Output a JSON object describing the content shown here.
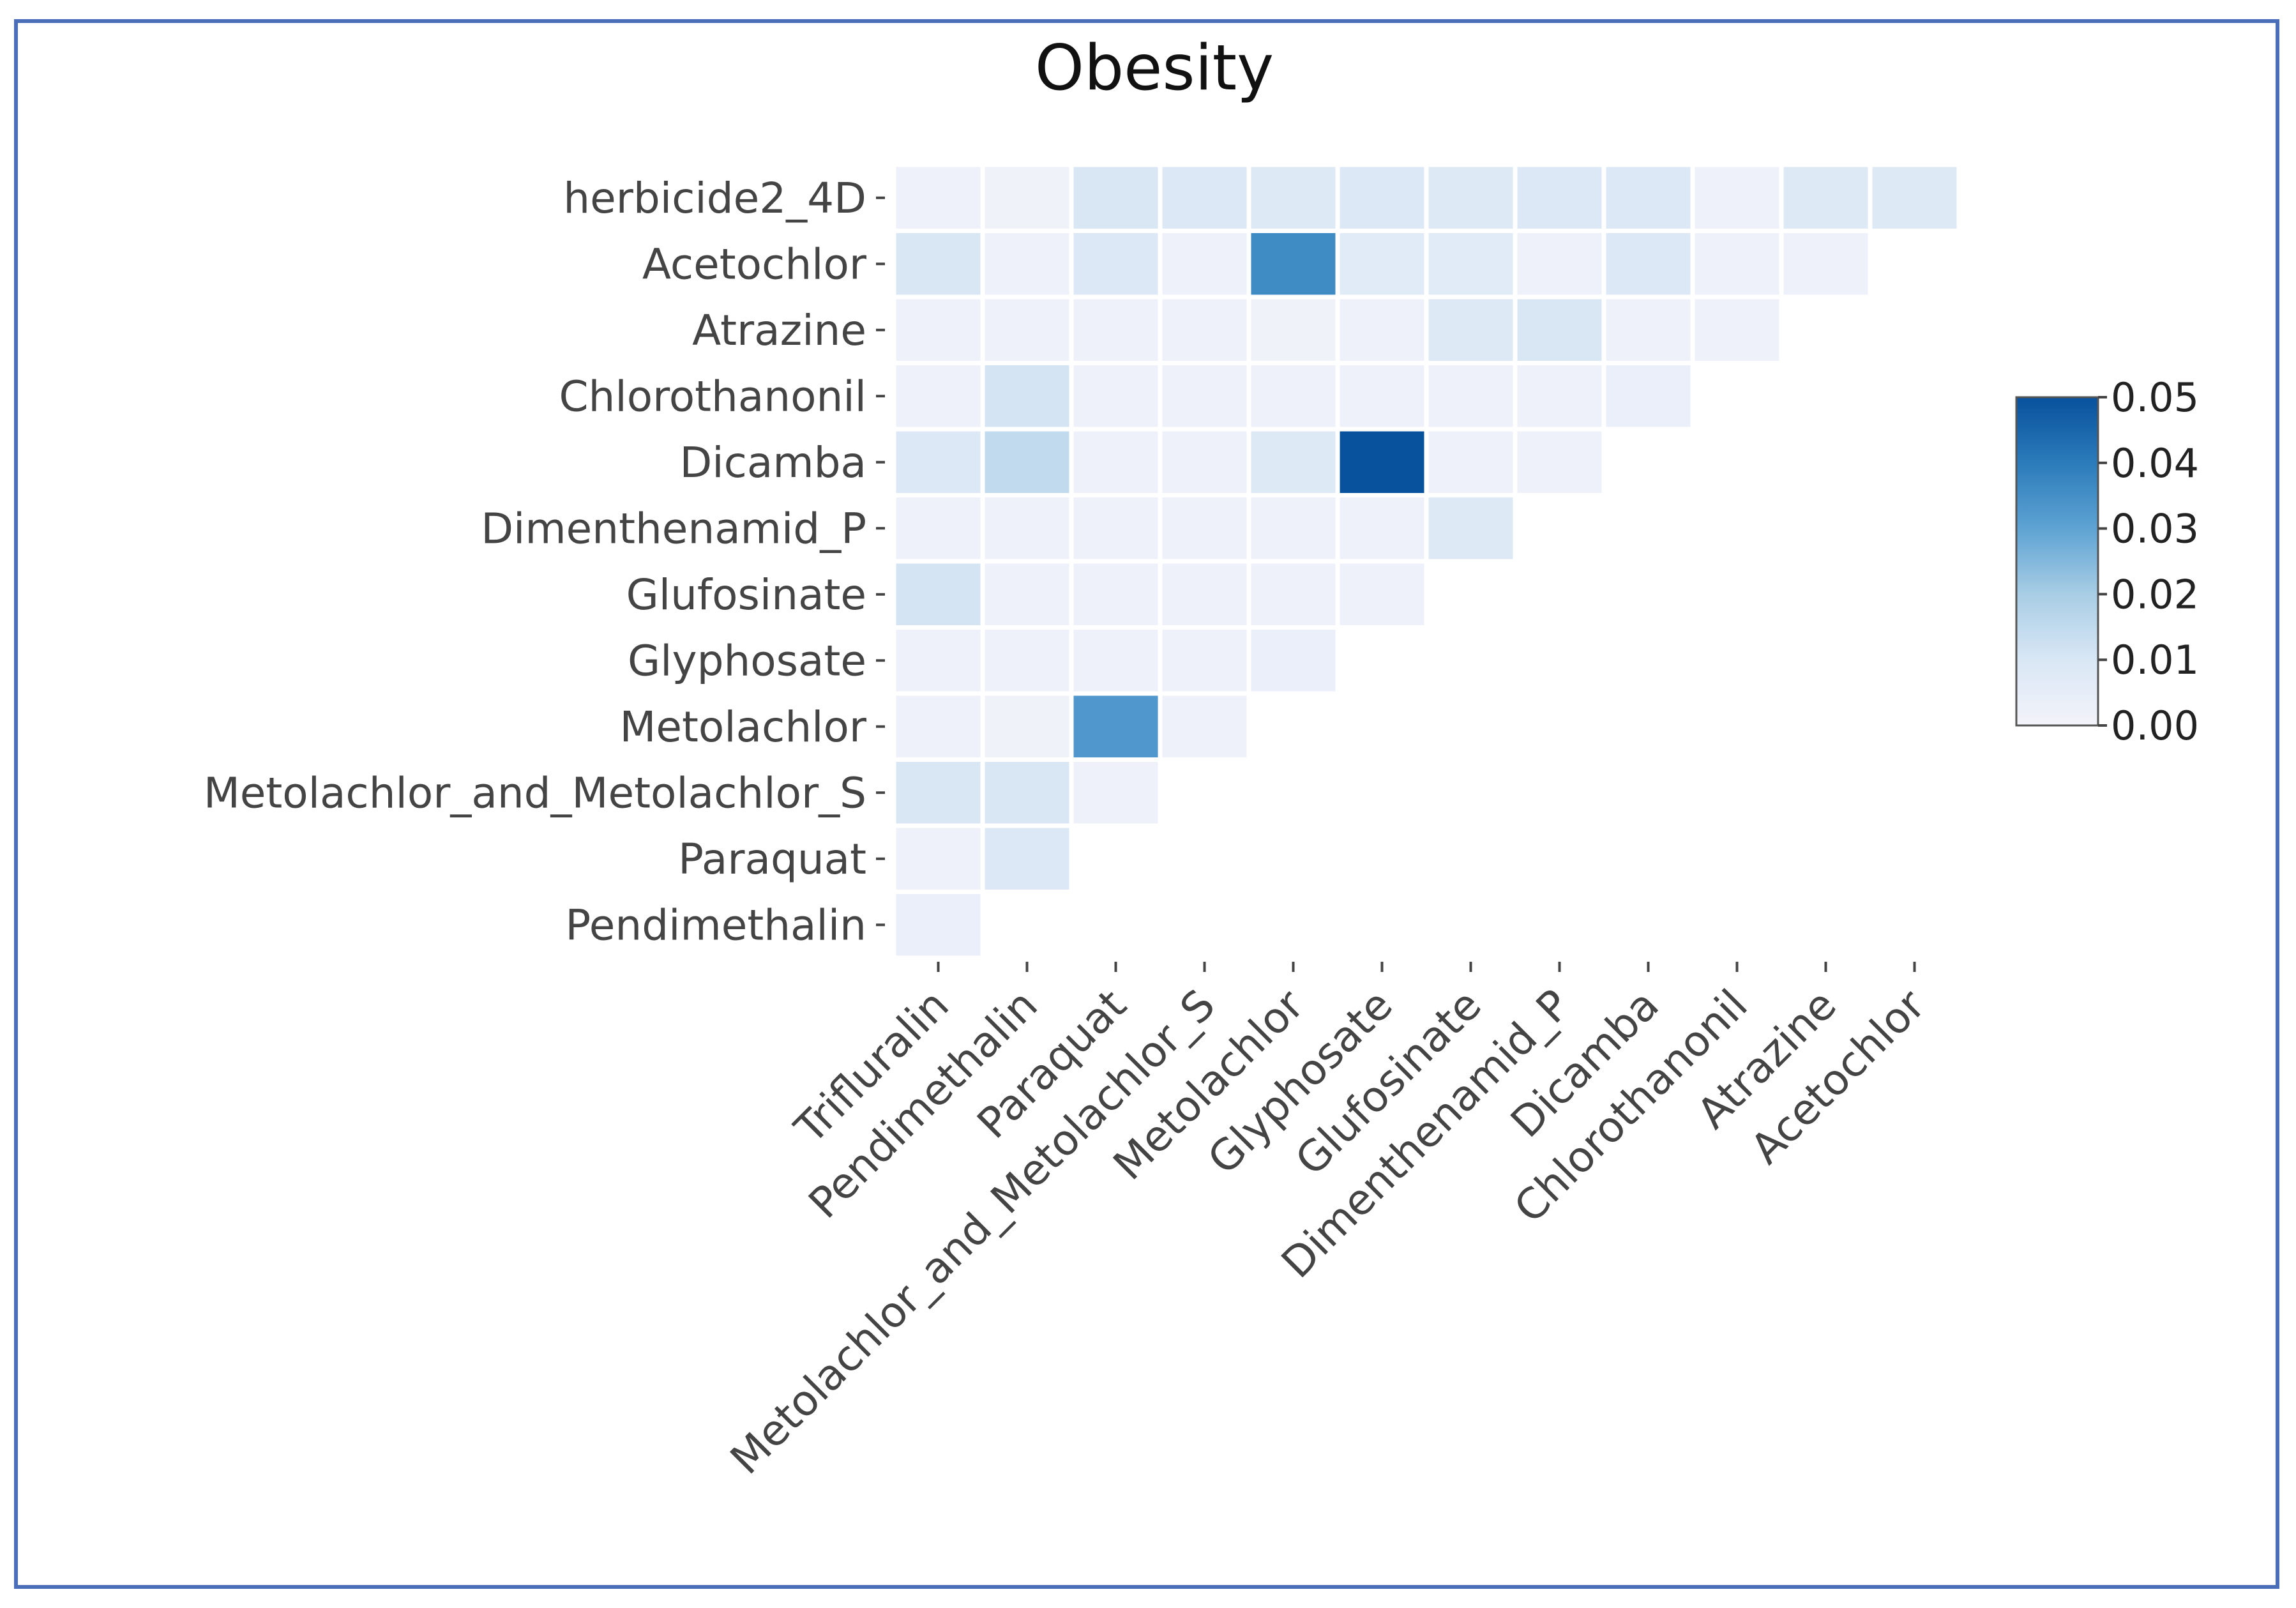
{
  "chart_data": {
    "type": "heatmap",
    "title": "Obesity",
    "y_labels": [
      "herbicide2_4D",
      "Acetochlor",
      "Atrazine",
      "Chlorothanonil",
      "Dicamba",
      "Dimenthenamid_P",
      "Glufosinate",
      "Glyphosate",
      "Metolachlor",
      "Metolachlor_and_Metolachlor_S",
      "Paraquat",
      "Pendimethalin"
    ],
    "x_labels": [
      "Trifluralin",
      "Pendimethalin",
      "Paraquat",
      "Metolachlor_and_Metolachlor_S",
      "Metolachlor",
      "Glyphosate",
      "Glufosinate",
      "Dimenthenamid_P",
      "Dicamba",
      "Chlorothanonil",
      "Atrazine",
      "Acetochlor"
    ],
    "values": [
      [
        0.002,
        0.001,
        0.01,
        0.009,
        0.008,
        0.009,
        0.008,
        0.009,
        0.009,
        0.002,
        0.008,
        0.008
      ],
      [
        0.01,
        0.002,
        0.009,
        0.002,
        0.036,
        0.007,
        0.007,
        0.002,
        0.009,
        0.002,
        0.002
      ],
      [
        0.002,
        0.002,
        0.002,
        0.002,
        0.001,
        0.002,
        0.008,
        0.01,
        0.002,
        0.002
      ],
      [
        0.002,
        0.011,
        0.002,
        0.002,
        0.002,
        0.002,
        0.002,
        0.002,
        0.003
      ],
      [
        0.009,
        0.015,
        0.002,
        0.002,
        0.008,
        0.05,
        0.002,
        0.002
      ],
      [
        0.002,
        0.002,
        0.002,
        0.002,
        0.002,
        0.002,
        0.008
      ],
      [
        0.011,
        0.002,
        0.002,
        0.002,
        0.002,
        0.002
      ],
      [
        0.002,
        0.002,
        0.002,
        0.002,
        0.003
      ],
      [
        0.002,
        0.001,
        0.033,
        0.002
      ],
      [
        0.01,
        0.01,
        0.002
      ],
      [
        0.002,
        0.009
      ],
      [
        0.003
      ]
    ],
    "colorbar": {
      "min": 0.0,
      "max": 0.05,
      "ticks": [
        "0.00",
        "0.01",
        "0.02",
        "0.03",
        "0.04",
        "0.05"
      ]
    },
    "colormap": [
      "#f3f3fa",
      "#d9e7f5",
      "#a8cde5",
      "#5ea3d3",
      "#2b7bba",
      "#08519c"
    ]
  }
}
